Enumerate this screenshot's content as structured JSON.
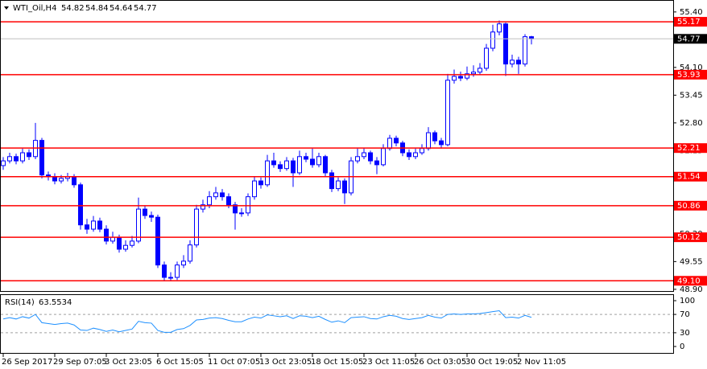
{
  "chart_data": [
    {
      "type": "candlestick",
      "title": "WTI_Oil,H4",
      "categories": [
        "26 Sep 2017",
        null,
        null,
        null,
        null,
        null,
        null,
        null,
        "29 Sep 07:05",
        null,
        null,
        null,
        null,
        null,
        null,
        null,
        "3 Oct 23:05",
        null,
        null,
        null,
        null,
        null,
        null,
        null,
        "6 Oct 15:05",
        null,
        null,
        null,
        null,
        null,
        null,
        null,
        "11 Oct 07:05",
        null,
        null,
        null,
        null,
        null,
        null,
        null,
        "13 Oct 23:05",
        null,
        null,
        null,
        null,
        null,
        null,
        null,
        "18 Oct 15:05",
        null,
        null,
        null,
        null,
        null,
        null,
        null,
        "23 Oct 11:05",
        null,
        null,
        null,
        null,
        null,
        null,
        null,
        "26 Oct 03:05",
        null,
        null,
        null,
        null,
        null,
        null,
        null,
        "30 Oct 19:05",
        null,
        null,
        null,
        null,
        null,
        null,
        null,
        "2 Nov 11:05",
        null,
        null
      ],
      "open": [
        51.8,
        51.91,
        52.01,
        51.91,
        52.1,
        52.01,
        52.39,
        51.58,
        51.54,
        51.44,
        51.5,
        51.54,
        51.35,
        50.41,
        50.31,
        50.5,
        50.31,
        50.03,
        50.12,
        49.84,
        49.93,
        50.03,
        50.78,
        50.63,
        50.59,
        49.47,
        49.18,
        49.18,
        49.47,
        49.56,
        49.94,
        50.78,
        50.88,
        51.07,
        51.16,
        51.07,
        50.88,
        50.69,
        50.69,
        51.07,
        51.44,
        51.35,
        51.91,
        51.82,
        51.73,
        51.91,
        51.63,
        52.01,
        51.95,
        51.82,
        52.01,
        51.63,
        51.26,
        51.44,
        51.16,
        51.91,
        52.01,
        52.1,
        51.91,
        51.82,
        52.2,
        52.44,
        52.33,
        52.1,
        52.01,
        52.1,
        52.2,
        52.57,
        52.38,
        52.29,
        53.8,
        53.89,
        53.85,
        53.95,
        53.99,
        54.08,
        54.55,
        54.93,
        55.12,
        54.18,
        54.27,
        54.18,
        54.82
      ],
      "high": [
        52.0,
        52.1,
        52.08,
        52.2,
        52.18,
        52.8,
        52.45,
        51.66,
        51.62,
        51.58,
        51.63,
        51.6,
        51.4,
        50.55,
        50.62,
        50.58,
        50.4,
        50.25,
        50.18,
        50.05,
        50.15,
        51.05,
        50.86,
        50.72,
        50.65,
        49.55,
        49.3,
        49.55,
        49.7,
        50.05,
        50.88,
        51.0,
        51.2,
        51.3,
        51.25,
        51.15,
        50.95,
        50.8,
        51.15,
        51.55,
        51.52,
        52.05,
        52.1,
        51.9,
        52.0,
        51.98,
        52.15,
        52.1,
        52.2,
        52.1,
        52.05,
        51.7,
        51.52,
        51.5,
        52.0,
        52.2,
        52.22,
        52.15,
        52.0,
        52.3,
        52.52,
        52.5,
        52.38,
        52.18,
        52.2,
        52.3,
        52.7,
        52.62,
        52.45,
        53.95,
        54.05,
        54.0,
        54.12,
        54.15,
        54.2,
        54.65,
        55.1,
        55.2,
        55.15,
        54.4,
        54.35,
        54.88,
        54.84
      ],
      "low": [
        51.7,
        51.85,
        51.83,
        51.85,
        51.93,
        51.95,
        51.5,
        51.45,
        51.36,
        51.38,
        51.43,
        51.28,
        50.3,
        50.2,
        50.25,
        50.24,
        49.95,
        49.97,
        49.76,
        49.78,
        49.88,
        49.98,
        50.55,
        50.48,
        49.4,
        49.1,
        49.1,
        49.12,
        49.4,
        49.5,
        49.88,
        50.7,
        50.8,
        51.0,
        50.98,
        50.8,
        50.3,
        50.6,
        50.62,
        51.0,
        51.26,
        51.3,
        51.75,
        51.65,
        51.68,
        51.3,
        51.58,
        51.88,
        51.75,
        51.76,
        51.55,
        51.18,
        51.2,
        50.9,
        51.1,
        51.85,
        51.95,
        51.83,
        51.6,
        51.78,
        52.15,
        52.25,
        52.02,
        51.93,
        51.95,
        52.05,
        52.15,
        52.3,
        52.2,
        52.25,
        53.72,
        53.78,
        53.8,
        53.88,
        53.92,
        54.02,
        54.48,
        54.85,
        53.9,
        54.1,
        53.95,
        54.12,
        54.64
      ],
      "close": [
        51.91,
        52.01,
        51.91,
        52.1,
        52.01,
        52.39,
        51.58,
        51.54,
        51.44,
        51.5,
        51.54,
        51.35,
        50.41,
        50.31,
        50.5,
        50.31,
        50.03,
        50.12,
        49.84,
        49.93,
        50.03,
        50.78,
        50.63,
        50.59,
        49.47,
        49.18,
        49.18,
        49.47,
        49.56,
        49.94,
        50.78,
        50.88,
        51.07,
        51.16,
        51.07,
        50.88,
        50.69,
        50.69,
        51.07,
        51.44,
        51.35,
        51.91,
        51.82,
        51.73,
        51.91,
        51.63,
        52.01,
        51.95,
        51.82,
        52.01,
        51.63,
        51.26,
        51.44,
        51.16,
        51.91,
        52.01,
        52.1,
        51.91,
        51.82,
        52.2,
        52.44,
        52.33,
        52.1,
        52.01,
        52.1,
        52.2,
        52.57,
        52.38,
        52.29,
        53.8,
        53.89,
        53.85,
        53.95,
        53.99,
        54.08,
        54.55,
        54.93,
        55.12,
        54.18,
        54.27,
        54.18,
        54.82,
        54.77
      ],
      "up_color": "#ffffff",
      "down_color": "#0000ff",
      "wick_color": "#0000ff",
      "ylim": [
        48.86,
        55.68
      ],
      "yticks": [
        {
          "value": 55.4,
          "label": "55.40"
        },
        54.75,
        {
          "value": 54.1,
          "label": "54.10"
        },
        53.45,
        {
          "value": 52.8,
          "label": "52.80"
        },
        52.15,
        {
          "value": 51.5,
          "label": "51.50"
        },
        50.85,
        {
          "value": 50.2,
          "label": "50.20"
        },
        49.55,
        {
          "value": 48.9,
          "label": "48.90"
        }
      ],
      "levels": [
        55.17,
        53.93,
        52.21,
        51.54,
        50.86,
        50.12,
        {
          "value": 49.1,
          "label": "49.10"
        }
      ],
      "level_color": "#ff0000",
      "current_price_color": "#c0c0c0"
    },
    {
      "type": "line",
      "title": "RSI(14)",
      "values": [
        60,
        63,
        60,
        65,
        62,
        70,
        52,
        50,
        48,
        50,
        51,
        47,
        36,
        35,
        40,
        37,
        33,
        36,
        32,
        35,
        38,
        55,
        52,
        51,
        35,
        31,
        31,
        37,
        39,
        46,
        58,
        59,
        62,
        63,
        61,
        57,
        54,
        54,
        60,
        64,
        62,
        69,
        67,
        65,
        67,
        61,
        67,
        66,
        63,
        66,
        59,
        53,
        56,
        52,
        63,
        64,
        65,
        61,
        60,
        65,
        68,
        66,
        61,
        59,
        61,
        63,
        68,
        64,
        62,
        70,
        71,
        70,
        71,
        71,
        72,
        74,
        76,
        78,
        63,
        64,
        62,
        68,
        63.5534
      ],
      "color": "#1e90ff",
      "ylim": [
        0,
        100
      ],
      "yticks": [
        100,
        70,
        30,
        0
      ],
      "levels": [
        70,
        30
      ]
    }
  ]
}
